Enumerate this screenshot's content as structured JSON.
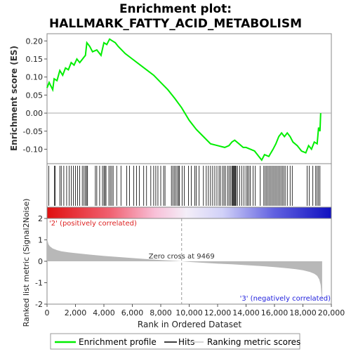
{
  "title_line1": "Enrichment plot:",
  "title_line2": "HALLMARK_FATTY_ACID_METABOLISM",
  "colors": {
    "enrichment_line": "#00ee00",
    "hits": "#000000",
    "ranking_fill": "#b8b8b8",
    "positive_label": "#dd2222",
    "negative_label": "#2222dd"
  },
  "chart_data": [
    {
      "type": "line",
      "name": "enrichment-score-panel",
      "ylabel": "Enrichment score (ES)",
      "ylim": [
        -0.14,
        0.22
      ],
      "xlim": [
        0,
        19353
      ],
      "yticks": [
        "0.20",
        "0.15",
        "0.10",
        "0.05",
        "0.00",
        "-0.05",
        "-0.10"
      ],
      "grid": false,
      "series": [
        {
          "name": "Enrichment profile",
          "x": [
            0,
            150,
            400,
            500,
            700,
            900,
            1100,
            1300,
            1500,
            1700,
            1900,
            2100,
            2300,
            2500,
            2700,
            2800,
            3000,
            3200,
            3500,
            3800,
            4000,
            4200,
            4400,
            4600,
            4800,
            5000,
            5500,
            6000,
            6500,
            7000,
            7500,
            8000,
            8500,
            9000,
            9469,
            10000,
            10500,
            11000,
            11500,
            12000,
            12500,
            12800,
            13000,
            13200,
            13500,
            13800,
            14000,
            14300,
            14600,
            14900,
            15100,
            15300,
            15600,
            15900,
            16100,
            16300,
            16500,
            16700,
            16900,
            17100,
            17300,
            17600,
            17900,
            18200,
            18400,
            18600,
            18800,
            19000,
            19100,
            19200,
            19250
          ],
          "y": [
            0.07,
            0.085,
            0.065,
            0.095,
            0.09,
            0.118,
            0.105,
            0.125,
            0.12,
            0.14,
            0.133,
            0.15,
            0.14,
            0.15,
            0.16,
            0.195,
            0.185,
            0.17,
            0.175,
            0.16,
            0.195,
            0.19,
            0.205,
            0.2,
            0.195,
            0.185,
            0.165,
            0.15,
            0.135,
            0.12,
            0.105,
            0.085,
            0.065,
            0.04,
            0.015,
            -0.02,
            -0.045,
            -0.065,
            -0.085,
            -0.09,
            -0.095,
            -0.09,
            -0.08,
            -0.075,
            -0.085,
            -0.095,
            -0.095,
            -0.1,
            -0.105,
            -0.12,
            -0.13,
            -0.115,
            -0.12,
            -0.1,
            -0.085,
            -0.065,
            -0.055,
            -0.065,
            -0.055,
            -0.065,
            -0.08,
            -0.09,
            -0.105,
            -0.11,
            -0.09,
            -0.1,
            -0.08,
            -0.085,
            -0.04,
            -0.05,
            0.0
          ]
        }
      ]
    },
    {
      "type": "bar",
      "name": "hits-panel",
      "series": [
        {
          "name": "Hits",
          "x": [
            120,
            520,
            580,
            900,
            1000,
            1180,
            1380,
            1550,
            1700,
            1850,
            2000,
            2150,
            2300,
            2480,
            2600,
            2700,
            2780,
            2850,
            3400,
            3500,
            3700,
            3900,
            4000,
            4080,
            4150,
            4350,
            4450,
            4550,
            4650,
            4900,
            5200,
            5600,
            5800,
            6100,
            6300,
            6500,
            6800,
            7000,
            7300,
            7500,
            7650,
            7800,
            8000,
            8200,
            8300,
            8750,
            8850,
            8950,
            9050,
            9150,
            9250,
            9300,
            9500,
            9650,
            9950,
            10150,
            10400,
            10500,
            10700,
            11000,
            11200,
            11350,
            11500,
            11650,
            11800,
            11950,
            12100,
            12200,
            12350,
            12450,
            12550,
            12700,
            12800,
            12900,
            13000,
            13050,
            13100,
            13150,
            13200,
            13250,
            13300,
            13400,
            13550,
            13700,
            13850,
            14000,
            14100,
            14200,
            14300,
            14500,
            14650,
            15000,
            15250,
            15350,
            15450,
            15550,
            15650,
            15750,
            15850,
            15950,
            16050,
            16150,
            16250,
            16350,
            16450,
            16550,
            16650,
            16750,
            16900,
            17100,
            17250,
            18300,
            18450,
            18700,
            18900,
            19000,
            19100,
            19200
          ]
        }
      ]
    },
    {
      "type": "area",
      "name": "ranking-panel",
      "ylabel": "Ranked list metric (Signal2Noise)",
      "xlabel": "Rank in Ordered Dataset",
      "ylim": [
        -2,
        2
      ],
      "xlim": [
        0,
        19353
      ],
      "yticks": [
        "2",
        "1",
        "0",
        "-1",
        "-2"
      ],
      "xticks": [
        "0",
        "2,000",
        "4,000",
        "6,000",
        "8,000",
        "10,000",
        "12,000",
        "14,000",
        "16,000",
        "18,000",
        "20,000"
      ],
      "zero_cross": 9469,
      "zero_cross_label": "Zero cross at 9469",
      "positive_label": "'2' (positively correlated)",
      "negative_label": "'3' (negatively correlated)",
      "series": [
        {
          "name": "Ranking metric scores",
          "x": [
            0,
            40,
            100,
            200,
            400,
            700,
            1000,
            1500,
            2000,
            3000,
            4000,
            5000,
            6000,
            7000,
            8000,
            9000,
            9469,
            10000,
            11000,
            12000,
            13000,
            14000,
            15000,
            16000,
            17000,
            17500,
            18000,
            18500,
            18800,
            19000,
            19150,
            19250,
            19300,
            19353
          ],
          "y": [
            1.1,
            0.95,
            0.8,
            0.7,
            0.6,
            0.52,
            0.47,
            0.42,
            0.38,
            0.31,
            0.25,
            0.2,
            0.15,
            0.1,
            0.06,
            0.02,
            0.0,
            -0.03,
            -0.07,
            -0.11,
            -0.14,
            -0.18,
            -0.22,
            -0.27,
            -0.33,
            -0.37,
            -0.42,
            -0.5,
            -0.58,
            -0.68,
            -0.85,
            -1.1,
            -1.5,
            -1.85
          ]
        }
      ]
    }
  ],
  "legend": {
    "items": [
      "Enrichment profile",
      "Hits",
      "Ranking metric scores"
    ]
  }
}
